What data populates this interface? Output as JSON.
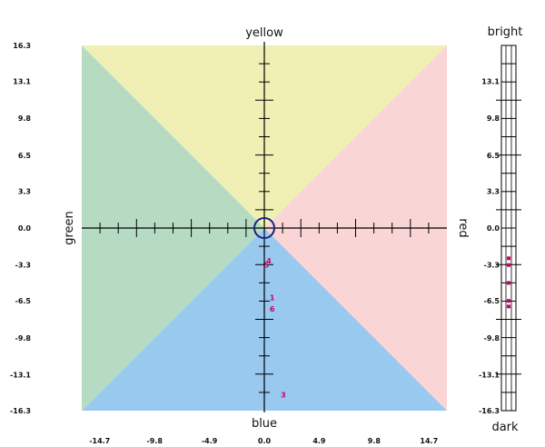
{
  "chart_data": {
    "type": "scatter",
    "xlim": [
      -16.3,
      16.3
    ],
    "ylim": [
      -16.3,
      16.3
    ],
    "x_ticks": [
      "-14.7",
      "-9.8",
      "-4.9",
      "0.0",
      "4.9",
      "9.8",
      "14.7"
    ],
    "y_ticks": [
      "16.3",
      "13.1",
      "9.8",
      "6.5",
      "3.3",
      "0.0",
      "-3.3",
      "-6.5",
      "-9.8",
      "-13.1",
      "-16.3"
    ],
    "axis_words": {
      "top": "yellow",
      "bottom": "blue",
      "left": "green",
      "right": "red"
    },
    "quadrant_colors": {
      "yellow": "#f0f0b4",
      "red": "#f9d5d5",
      "blue": "#99c9ee",
      "green": "#b6dbc3"
    },
    "points": [
      {
        "label": "3",
        "x": 1.7,
        "y": -14.9
      },
      {
        "label": "4",
        "x": 0.4,
        "y": -2.9
      },
      {
        "label": "5",
        "x": 0.2,
        "y": -3.3
      },
      {
        "label": "6",
        "x": 0.7,
        "y": -7.2
      },
      {
        "label": "1",
        "x": 0.7,
        "y": -6.2
      }
    ],
    "brightness": {
      "top_label": "bright",
      "bottom_label": "dark",
      "ylim": [
        -16.3,
        16.3
      ],
      "y_ticks": [
        "13.1",
        "9.8",
        "6.5",
        "3.3",
        "0.0",
        "-3.3",
        "-6.5",
        "-9.8",
        "-13.1",
        "-16.3"
      ],
      "marks": [
        -2.7,
        -3.3,
        -4.9,
        -6.5,
        -7.0
      ]
    }
  }
}
